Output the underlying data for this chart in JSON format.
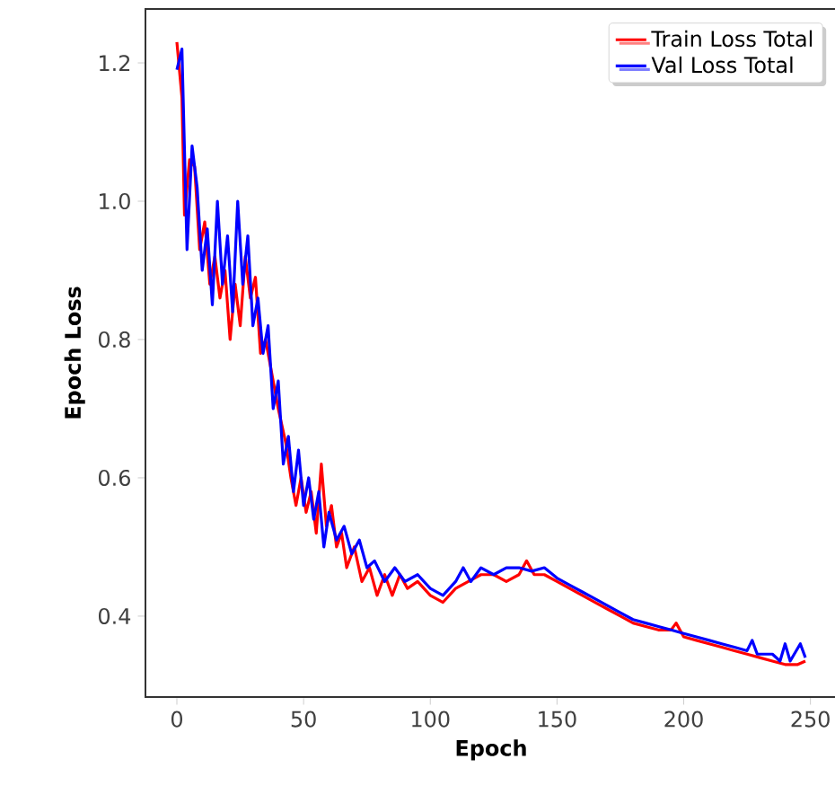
{
  "chart_data": {
    "type": "line",
    "xlabel": "Epoch",
    "ylabel": "Epoch Loss",
    "xlim": [
      -12.4,
      260.4
    ],
    "ylim": [
      0.283,
      1.278
    ],
    "xticks": [
      0,
      50,
      100,
      150,
      200,
      250
    ],
    "yticks": [
      0.4,
      0.6,
      0.8,
      {
        "value": 1.0,
        "label": "1.0"
      },
      1.2
    ],
    "legend": "top right",
    "grid": false,
    "line_style": "solid",
    "series": [
      {
        "name": "Train Loss Total",
        "color": "#ff0000",
        "x": [
          0,
          2,
          3,
          5,
          7,
          9,
          11,
          13,
          15,
          17,
          19,
          21,
          23,
          25,
          27,
          29,
          31,
          33,
          35,
          37,
          40,
          43,
          45,
          47,
          49,
          51,
          53,
          55,
          57,
          59,
          61,
          63,
          65,
          67,
          70,
          73,
          76,
          79,
          82,
          85,
          88,
          91,
          95,
          100,
          105,
          110,
          115,
          120,
          125,
          130,
          135,
          138,
          141,
          145,
          150,
          155,
          160,
          165,
          170,
          175,
          180,
          185,
          190,
          195,
          197,
          200,
          205,
          210,
          215,
          220,
          225,
          230,
          235,
          240,
          245,
          248
        ],
        "values": [
          1.23,
          1.15,
          0.98,
          1.06,
          1.05,
          0.93,
          0.97,
          0.88,
          0.92,
          0.86,
          0.9,
          0.8,
          0.88,
          0.82,
          0.92,
          0.86,
          0.89,
          0.78,
          0.8,
          0.76,
          0.7,
          0.65,
          0.6,
          0.56,
          0.6,
          0.55,
          0.58,
          0.52,
          0.62,
          0.53,
          0.56,
          0.5,
          0.52,
          0.47,
          0.5,
          0.45,
          0.47,
          0.43,
          0.46,
          0.43,
          0.46,
          0.44,
          0.45,
          0.43,
          0.42,
          0.44,
          0.45,
          0.46,
          0.46,
          0.45,
          0.46,
          0.48,
          0.46,
          0.46,
          0.45,
          0.44,
          0.43,
          0.42,
          0.41,
          0.4,
          0.39,
          0.385,
          0.38,
          0.38,
          0.39,
          0.37,
          0.365,
          0.36,
          0.355,
          0.35,
          0.345,
          0.34,
          0.335,
          0.33,
          0.33,
          0.335
        ]
      },
      {
        "name": "Val Loss Total",
        "color": "#0000ff",
        "x": [
          0,
          2,
          4,
          6,
          8,
          10,
          12,
          14,
          16,
          18,
          20,
          22,
          24,
          26,
          28,
          30,
          32,
          34,
          36,
          38,
          40,
          42,
          44,
          46,
          48,
          50,
          52,
          54,
          56,
          58,
          60,
          63,
          66,
          69,
          72,
          75,
          78,
          82,
          86,
          90,
          95,
          100,
          105,
          110,
          113,
          116,
          120,
          125,
          130,
          135,
          140,
          145,
          150,
          155,
          160,
          165,
          170,
          175,
          180,
          185,
          190,
          195,
          200,
          205,
          210,
          215,
          220,
          225,
          227,
          229,
          235,
          238,
          240,
          242,
          246,
          248
        ],
        "values": [
          1.19,
          1.22,
          0.93,
          1.08,
          1.02,
          0.9,
          0.96,
          0.85,
          1.0,
          0.88,
          0.95,
          0.84,
          1.0,
          0.88,
          0.95,
          0.82,
          0.86,
          0.78,
          0.82,
          0.7,
          0.74,
          0.62,
          0.66,
          0.58,
          0.64,
          0.56,
          0.6,
          0.54,
          0.58,
          0.5,
          0.55,
          0.51,
          0.53,
          0.49,
          0.51,
          0.47,
          0.48,
          0.45,
          0.47,
          0.45,
          0.46,
          0.44,
          0.43,
          0.45,
          0.47,
          0.45,
          0.47,
          0.46,
          0.47,
          0.47,
          0.465,
          0.47,
          0.455,
          0.445,
          0.435,
          0.425,
          0.415,
          0.405,
          0.395,
          0.39,
          0.385,
          0.38,
          0.375,
          0.37,
          0.365,
          0.36,
          0.355,
          0.35,
          0.365,
          0.345,
          0.345,
          0.335,
          0.36,
          0.335,
          0.36,
          0.34
        ]
      }
    ]
  }
}
